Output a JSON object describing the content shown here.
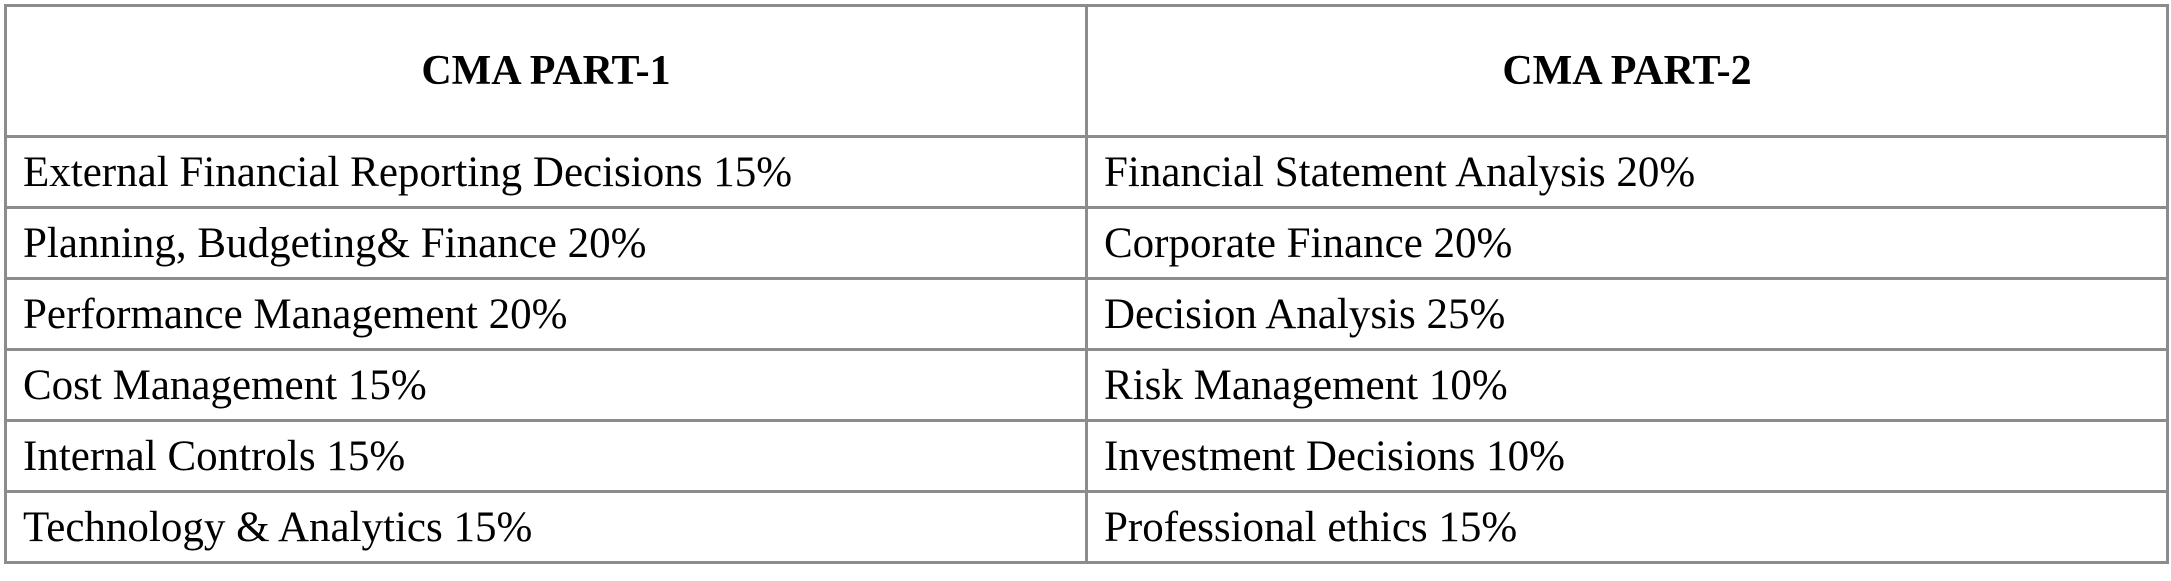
{
  "header": {
    "columns": [
      "CMA PART-1",
      "CMA PART-2"
    ]
  },
  "table": {
    "rows": [
      [
        "External Financial Reporting Decisions 15%",
        "Financial Statement Analysis 20%"
      ],
      [
        "Planning, Budgeting& Finance 20%",
        "Corporate Finance 20%"
      ],
      [
        "Performance Management 20%",
        "Decision Analysis 25%"
      ],
      [
        "Cost Management 15%",
        "Risk Management 10%"
      ],
      [
        "Internal Controls 15%",
        "Investment Decisions 10%"
      ],
      [
        "Technology & Analytics 15%",
        "Professional ethics 15%"
      ]
    ]
  }
}
